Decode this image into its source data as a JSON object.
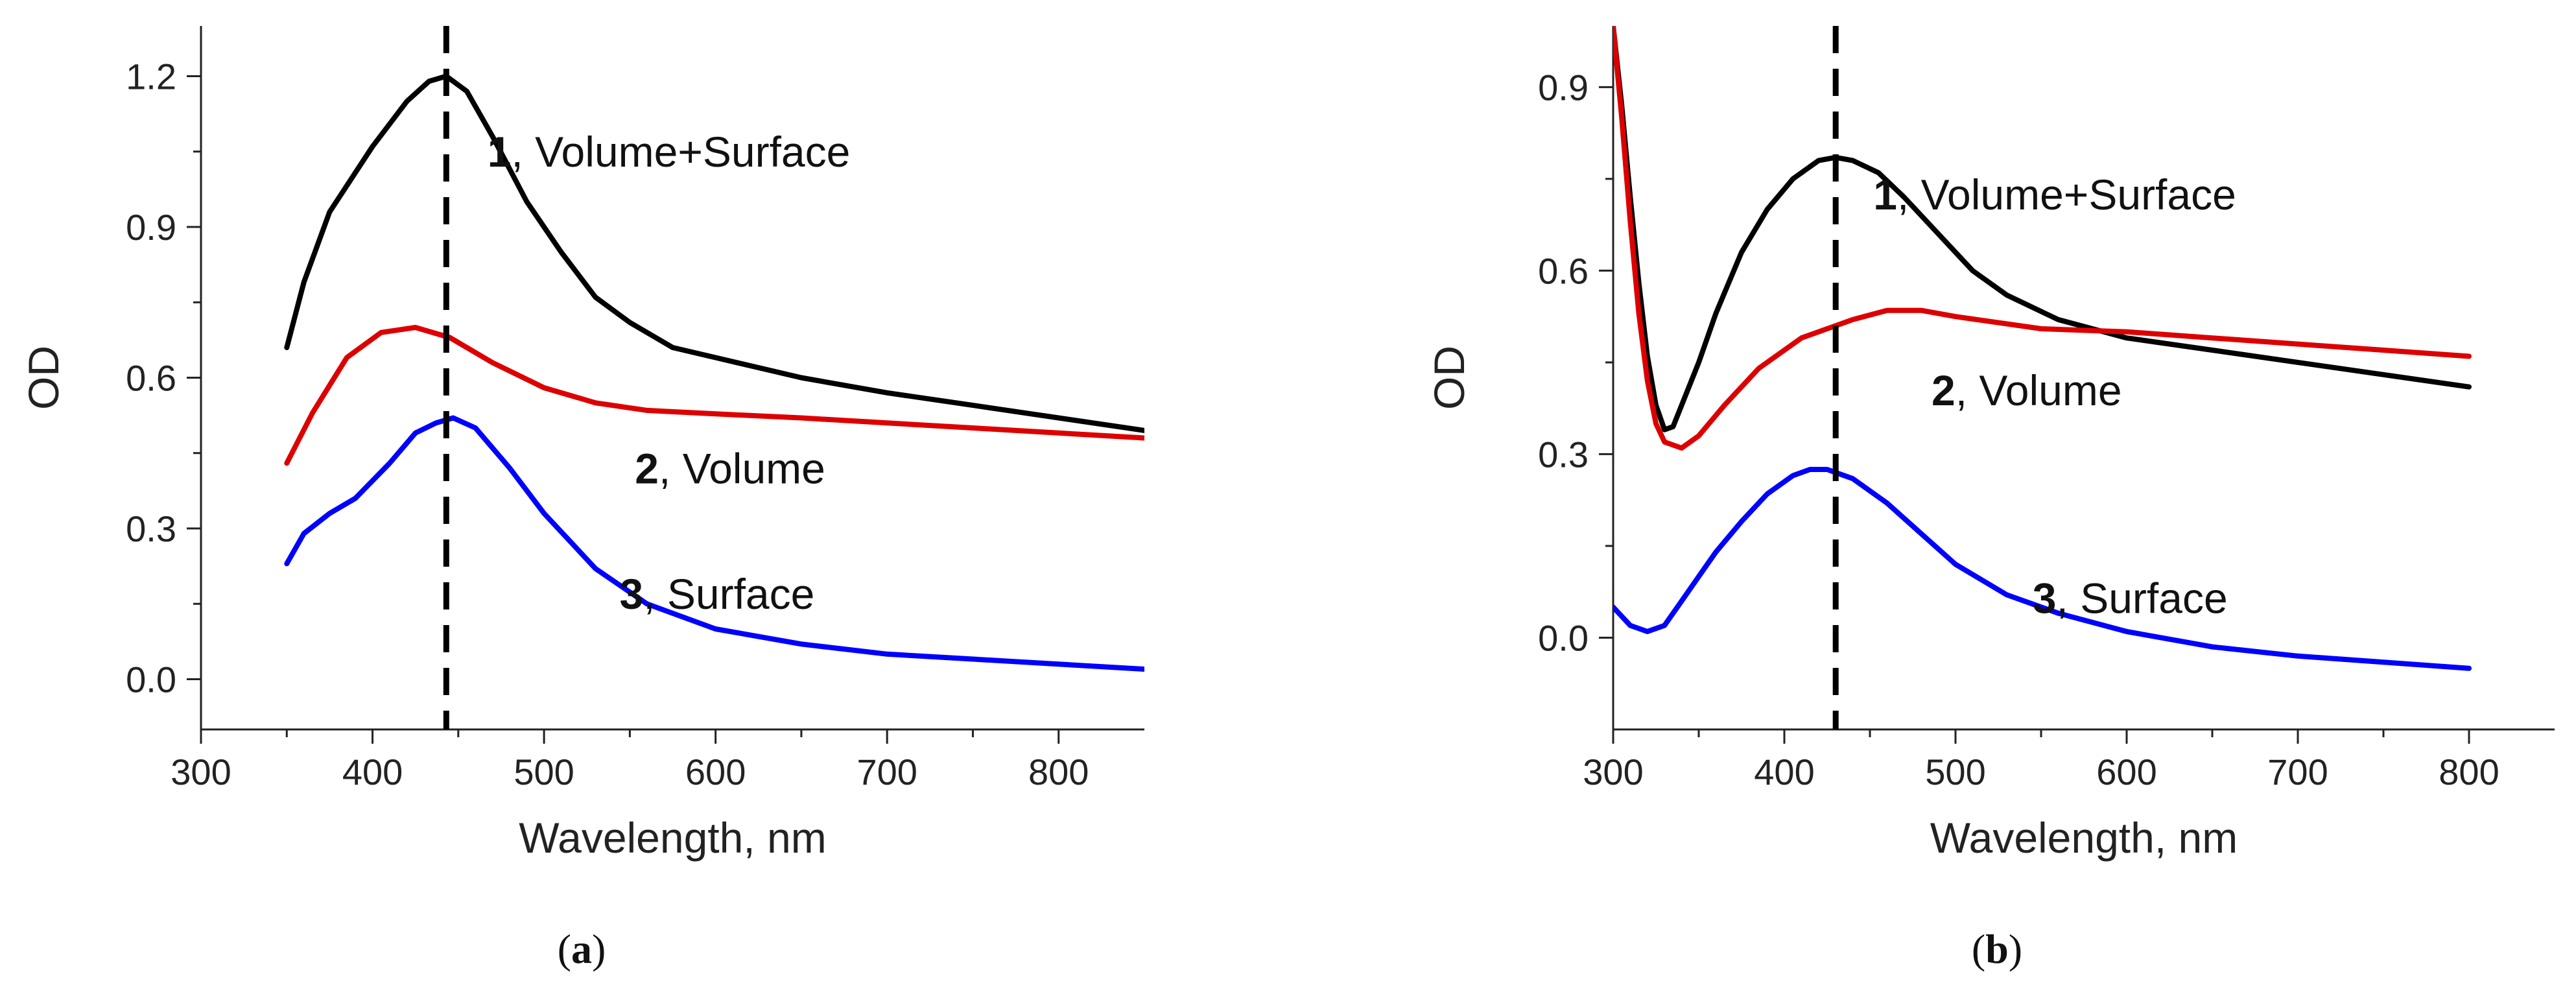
{
  "figure": {
    "panel_a_caption": {
      "open": "(",
      "letter": "a",
      "close": ")"
    },
    "panel_b_caption": {
      "open": "(",
      "letter": "b",
      "close": ")"
    }
  },
  "chart_data": [
    {
      "id": "a",
      "type": "line",
      "title": "",
      "xlabel": "Wavelength, nm",
      "ylabel": "OD",
      "xlim": [
        300,
        850
      ],
      "ylim": [
        -0.1,
        1.3
      ],
      "xticks": [
        300,
        400,
        500,
        600,
        700,
        800
      ],
      "yticks": [
        0.0,
        0.3,
        0.6,
        0.9,
        1.2
      ],
      "ytick_labels": [
        "0.0",
        "0.3",
        "0.6",
        "0.9",
        "1.2"
      ],
      "grid": false,
      "reference_line": {
        "x": 443,
        "style": "dashed",
        "color": "#000000"
      },
      "series": [
        {
          "name": "1, Volume+Surface",
          "number": "1",
          "label": ", Volume+Surface",
          "color": "#000000",
          "label_at": [
            467,
            1.02
          ],
          "x": [
            350,
            360,
            375,
            400,
            420,
            433,
            443,
            455,
            470,
            490,
            510,
            530,
            550,
            575,
            600,
            650,
            700,
            750,
            800,
            850
          ],
          "y": [
            0.66,
            0.79,
            0.93,
            1.06,
            1.15,
            1.19,
            1.2,
            1.17,
            1.08,
            0.95,
            0.85,
            0.76,
            0.71,
            0.66,
            0.64,
            0.6,
            0.57,
            0.545,
            0.52,
            0.495
          ]
        },
        {
          "name": "2, Volume",
          "number": "2",
          "label": ", Volume",
          "color": "#dd0000",
          "label_at": [
            553,
            0.39
          ],
          "x": [
            350,
            365,
            385,
            405,
            425,
            445,
            470,
            500,
            530,
            560,
            600,
            650,
            700,
            750,
            800,
            850
          ],
          "y": [
            0.43,
            0.53,
            0.64,
            0.69,
            0.7,
            0.68,
            0.63,
            0.58,
            0.55,
            0.535,
            0.528,
            0.52,
            0.51,
            0.5,
            0.49,
            0.48
          ]
        },
        {
          "name": "3, Surface",
          "number": "3",
          "label": ", Surface",
          "color": "#0000ff",
          "label_at": [
            544,
            0.14
          ],
          "x": [
            350,
            360,
            375,
            390,
            410,
            425,
            437,
            447,
            460,
            480,
            500,
            530,
            560,
            600,
            650,
            700,
            750,
            800,
            850
          ],
          "y": [
            0.23,
            0.29,
            0.33,
            0.36,
            0.43,
            0.49,
            0.51,
            0.52,
            0.5,
            0.42,
            0.33,
            0.22,
            0.15,
            0.1,
            0.07,
            0.05,
            0.04,
            0.03,
            0.02
          ]
        }
      ]
    },
    {
      "id": "b",
      "type": "line",
      "title": "",
      "xlabel": "Wavelength, nm",
      "ylabel": "OD",
      "xlim": [
        300,
        850
      ],
      "ylim": [
        -0.15,
        1.0
      ],
      "xticks": [
        300,
        400,
        500,
        600,
        700,
        800
      ],
      "yticks": [
        0.0,
        0.3,
        0.6,
        0.9
      ],
      "ytick_labels": [
        "0.0",
        "0.3",
        "0.6",
        "0.9"
      ],
      "grid": false,
      "reference_line": {
        "x": 430,
        "style": "dashed",
        "color": "#000000"
      },
      "series": [
        {
          "name": "1, Volume+Surface",
          "number": "1",
          "label": ", Volume+Surface",
          "color": "#000000",
          "label_at": [
            452,
            0.7
          ],
          "x": [
            300,
            305,
            310,
            315,
            320,
            325,
            330,
            335,
            340,
            350,
            360,
            375,
            390,
            405,
            420,
            430,
            440,
            455,
            470,
            490,
            510,
            530,
            560,
            600,
            650,
            700,
            750,
            800
          ],
          "y": [
            1.0,
            0.87,
            0.72,
            0.58,
            0.46,
            0.38,
            0.34,
            0.345,
            0.38,
            0.45,
            0.53,
            0.63,
            0.7,
            0.75,
            0.78,
            0.785,
            0.78,
            0.76,
            0.72,
            0.66,
            0.6,
            0.56,
            0.52,
            0.49,
            0.47,
            0.45,
            0.43,
            0.41
          ]
        },
        {
          "name": "2, Volume",
          "number": "2",
          "label": ", Volume",
          "color": "#dd0000",
          "label_at": [
            486,
            0.38
          ],
          "x": [
            300,
            305,
            310,
            315,
            320,
            325,
            330,
            340,
            350,
            365,
            385,
            410,
            440,
            460,
            480,
            500,
            550,
            600,
            650,
            700,
            750,
            800
          ],
          "y": [
            1.0,
            0.85,
            0.68,
            0.53,
            0.42,
            0.35,
            0.32,
            0.31,
            0.33,
            0.38,
            0.44,
            0.49,
            0.52,
            0.535,
            0.535,
            0.525,
            0.505,
            0.5,
            0.49,
            0.48,
            0.47,
            0.46
          ]
        },
        {
          "name": "3, Surface",
          "number": "3",
          "label": ", Surface",
          "color": "#0000ff",
          "label_at": [
            545,
            0.04
          ],
          "x": [
            300,
            310,
            320,
            330,
            340,
            350,
            360,
            375,
            390,
            405,
            415,
            425,
            440,
            460,
            480,
            500,
            530,
            560,
            600,
            650,
            700,
            750,
            800
          ],
          "y": [
            0.05,
            0.02,
            0.01,
            0.02,
            0.06,
            0.1,
            0.14,
            0.19,
            0.235,
            0.265,
            0.275,
            0.275,
            0.26,
            0.22,
            0.17,
            0.12,
            0.07,
            0.04,
            0.01,
            -0.015,
            -0.03,
            -0.04,
            -0.05
          ]
        }
      ]
    }
  ]
}
